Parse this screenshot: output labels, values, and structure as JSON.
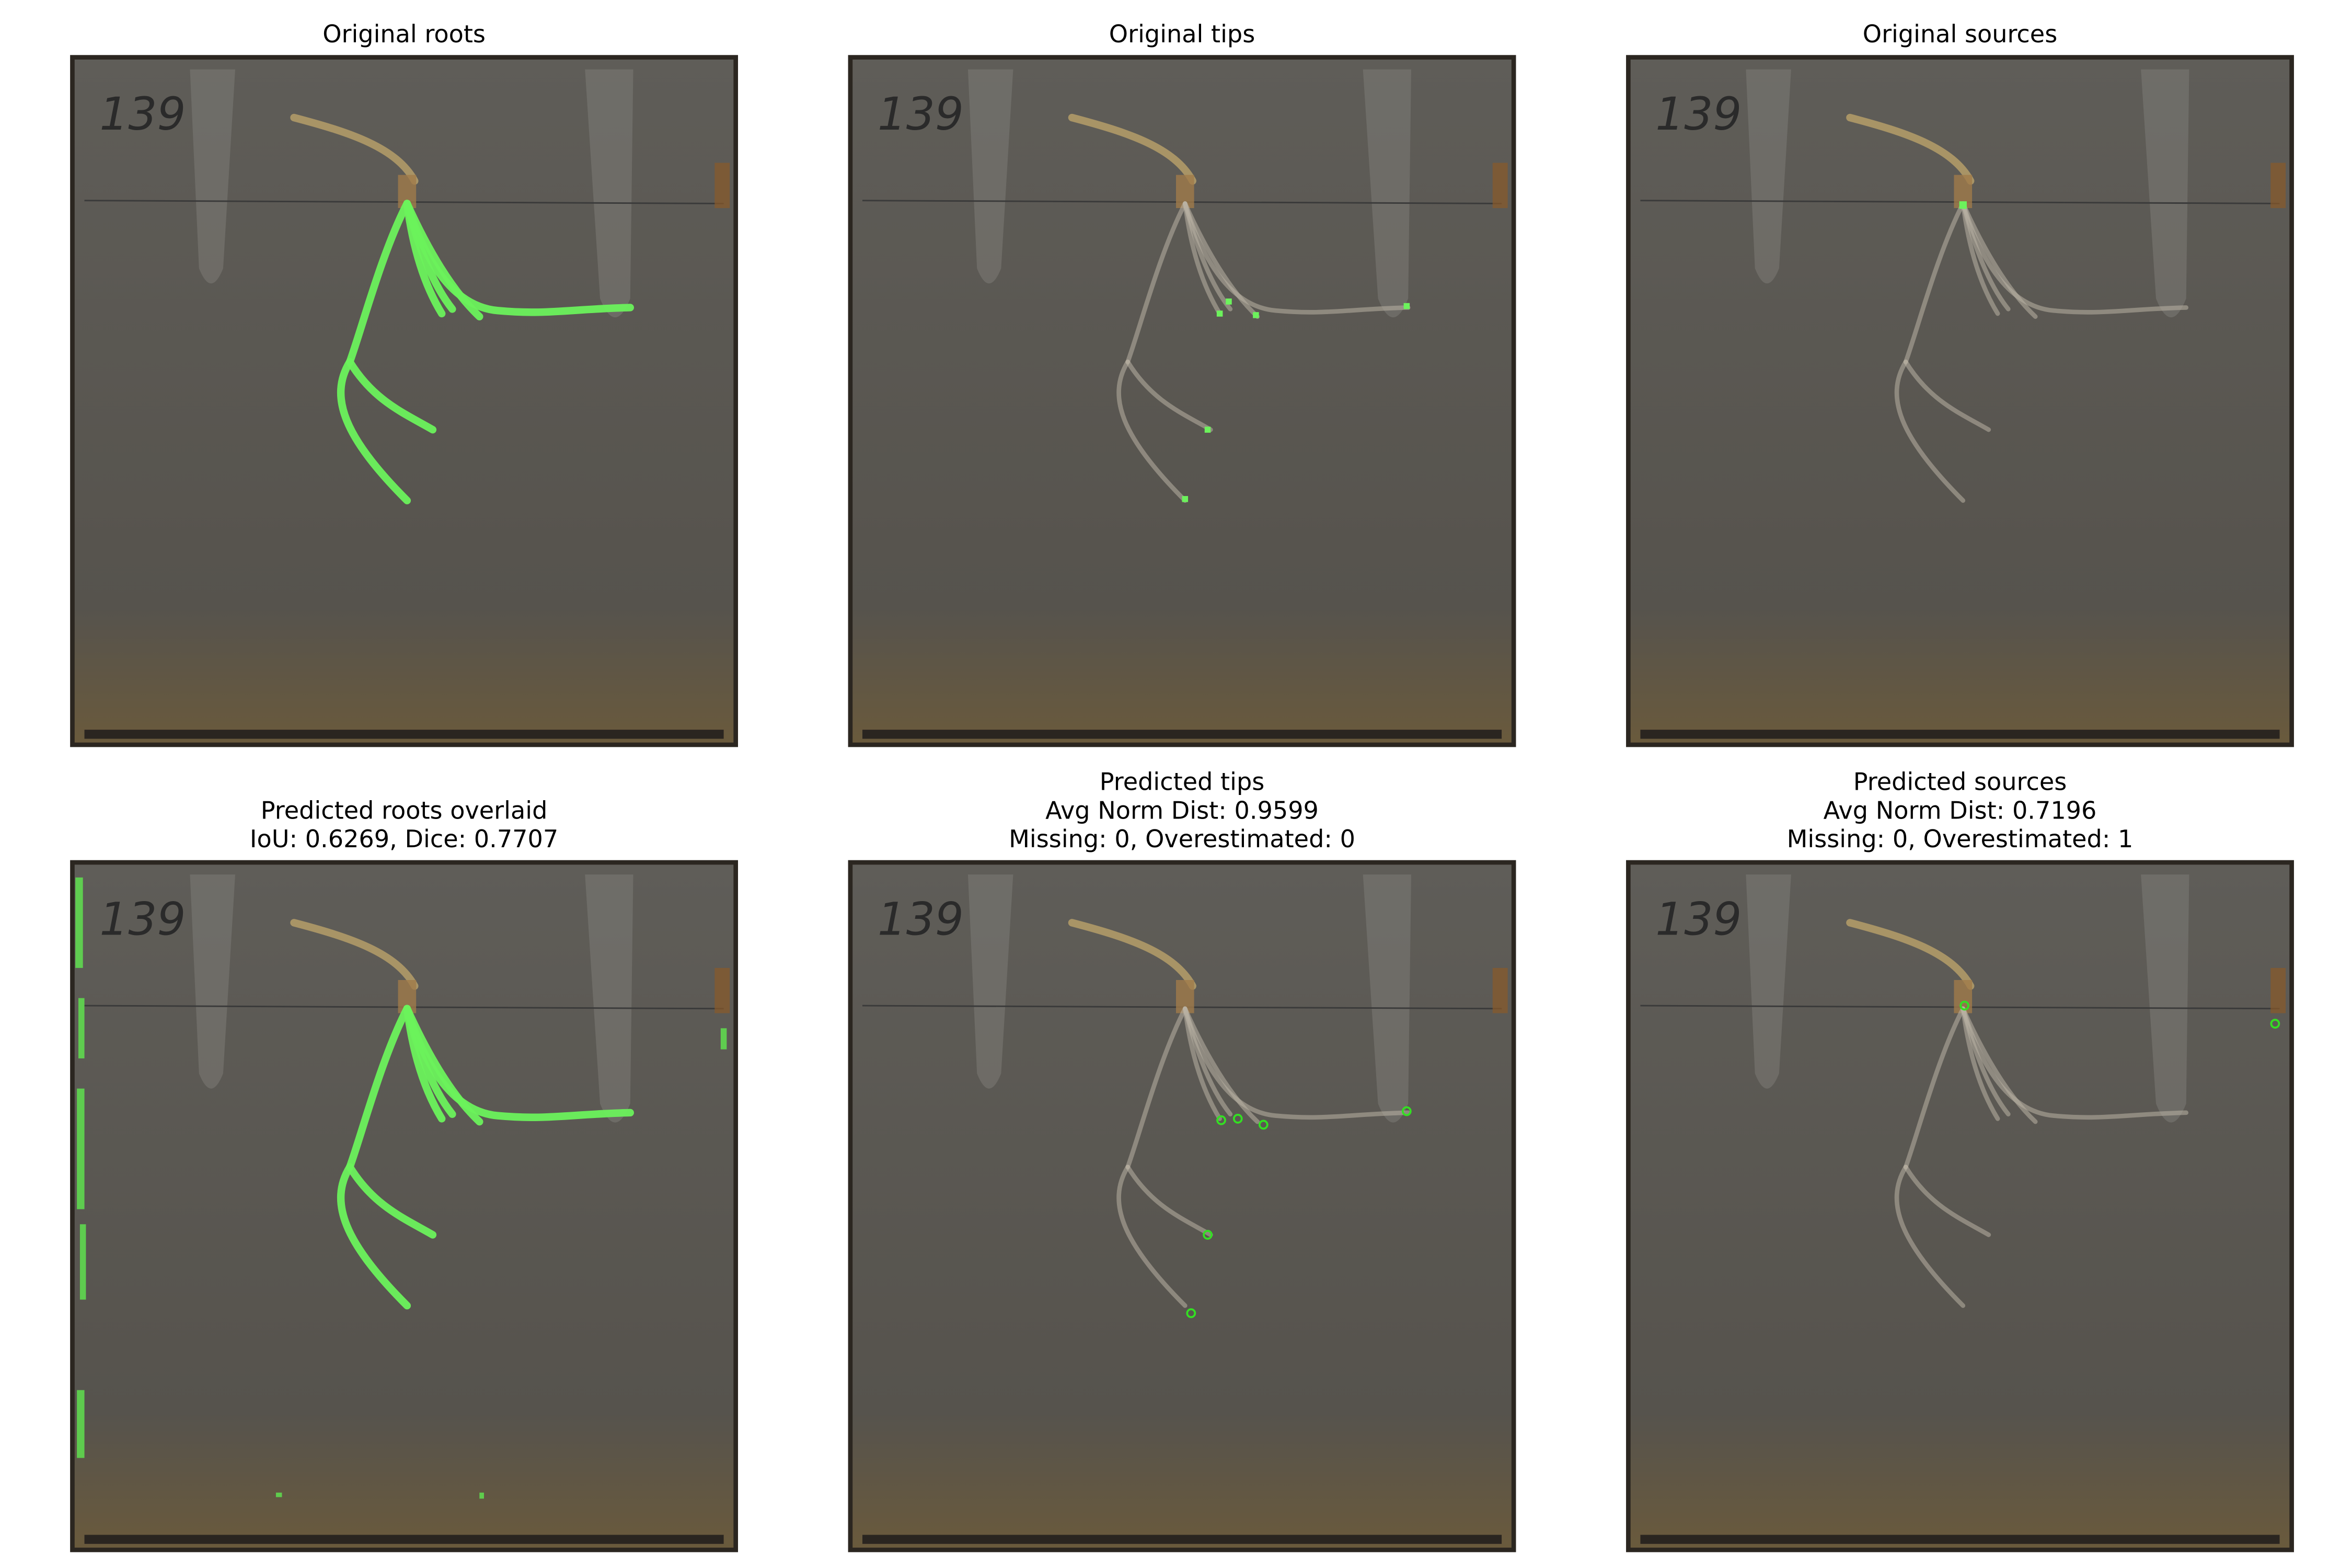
{
  "plate_label": "139",
  "panels": [
    {
      "title_lines": [
        "Original roots"
      ]
    },
    {
      "title_lines": [
        "Original tips"
      ]
    },
    {
      "title_lines": [
        "Original sources"
      ]
    },
    {
      "title_lines": [
        "Predicted roots overlaid",
        "IoU: 0.6269, Dice: 0.7707"
      ]
    },
    {
      "title_lines": [
        "Predicted tips",
        "Avg Norm Dist: 0.9599",
        "Missing: 0, Overestimated: 0"
      ]
    },
    {
      "title_lines": [
        "Predicted sources",
        "Avg Norm Dist: 0.7196",
        "Missing: 0, Overestimated: 1"
      ]
    }
  ]
}
